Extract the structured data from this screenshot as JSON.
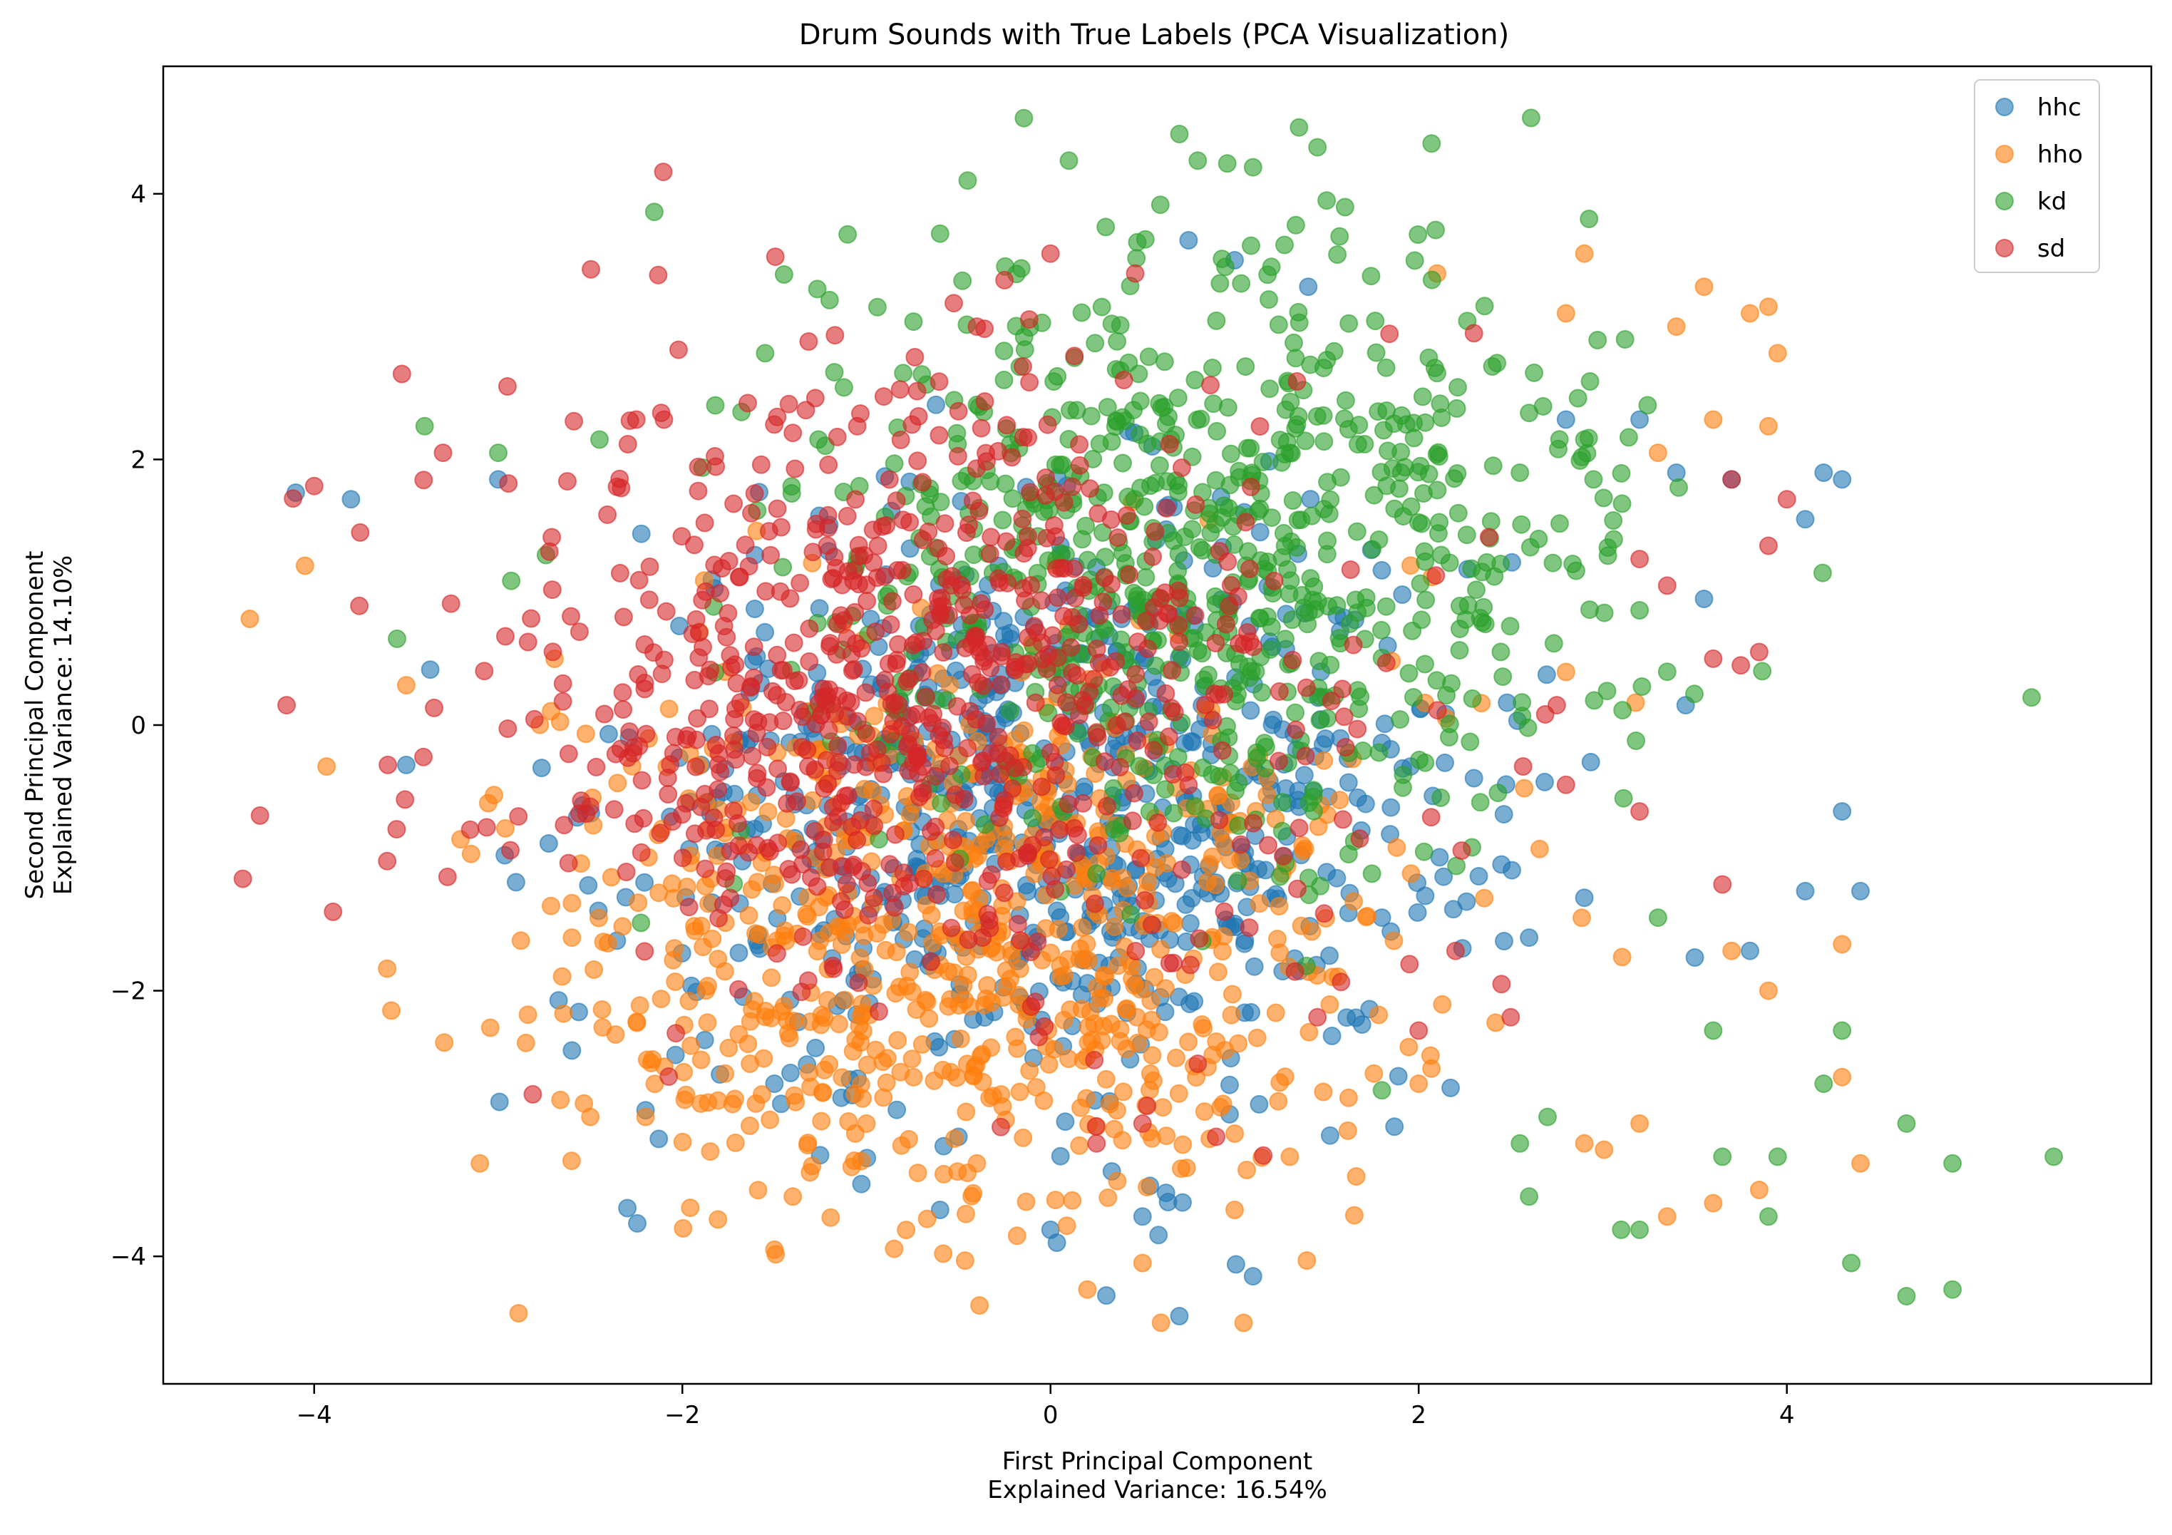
{
  "chart_data": {
    "type": "scatter",
    "title": "Drum Sounds with True Labels (PCA Visualization)",
    "xlabel": [
      "First Principal Component",
      "Explained Variance: 16.54%"
    ],
    "ylabel": [
      "Second Principal Component",
      "Explained Variance: 14.10%"
    ],
    "xlim": [
      -4.82,
      5.98
    ],
    "ylim": [
      -4.96,
      4.96
    ],
    "xticks": [
      -4,
      -2,
      0,
      2,
      4
    ],
    "yticks": [
      -4,
      -2,
      0,
      2,
      4
    ],
    "xtick_labels": [
      "−4",
      "−2",
      "0",
      "2",
      "4"
    ],
    "ytick_labels": [
      "−4",
      "−2",
      "0",
      "2",
      "4"
    ],
    "grid": false,
    "legend_position": "top-right",
    "point_alpha": 0.6,
    "series": [
      {
        "name": "hhc",
        "color": "#1f77b4",
        "center": [
          0.0,
          -0.6
        ],
        "count": 750,
        "sample_points": [
          [
            -4.1,
            1.75
          ],
          [
            -3.8,
            1.7
          ],
          [
            -3.5,
            -0.3
          ],
          [
            -3.0,
            1.85
          ],
          [
            -2.6,
            -2.45
          ],
          [
            -2.2,
            -2.9
          ],
          [
            -1.5,
            -2.7
          ],
          [
            -0.6,
            -3.65
          ],
          [
            0.0,
            -3.8
          ],
          [
            0.5,
            -3.7
          ],
          [
            0.7,
            -4.45
          ],
          [
            1.1,
            -4.15
          ],
          [
            0.75,
            3.65
          ],
          [
            1.0,
            3.5
          ],
          [
            1.4,
            3.3
          ],
          [
            2.8,
            2.3
          ],
          [
            3.2,
            2.3
          ],
          [
            3.4,
            1.9
          ],
          [
            3.55,
            0.95
          ],
          [
            3.7,
            1.85
          ],
          [
            4.1,
            1.55
          ],
          [
            4.2,
            1.9
          ],
          [
            4.3,
            1.85
          ],
          [
            4.3,
            -0.65
          ],
          [
            4.4,
            -1.25
          ],
          [
            4.1,
            -1.25
          ],
          [
            3.8,
            -1.7
          ],
          [
            3.5,
            -1.75
          ],
          [
            2.9,
            -1.3
          ],
          [
            2.6,
            -1.6
          ],
          [
            1.8,
            -1.45
          ],
          [
            2.3,
            -0.4
          ],
          [
            3.45,
            0.15
          ],
          [
            -0.5,
            -3.1
          ]
        ]
      },
      {
        "name": "hho",
        "color": "#ff7f0e",
        "center": [
          -0.4,
          -1.6
        ],
        "count": 750,
        "sample_points": [
          [
            -4.35,
            0.8
          ],
          [
            -4.05,
            1.2
          ],
          [
            -3.5,
            0.3
          ],
          [
            -3.1,
            -3.3
          ],
          [
            -2.6,
            -1.6
          ],
          [
            -2.5,
            -2.95
          ],
          [
            -2.2,
            -2.95
          ],
          [
            -1.9,
            -2.85
          ],
          [
            -1.5,
            -3.95
          ],
          [
            -1.4,
            -3.55
          ],
          [
            -1.0,
            -3.0
          ],
          [
            -0.4,
            -3.3
          ],
          [
            0.2,
            -4.25
          ],
          [
            0.6,
            -4.5
          ],
          [
            0.5,
            -4.05
          ],
          [
            1.0,
            -3.65
          ],
          [
            1.3,
            -3.25
          ],
          [
            2.0,
            -2.7
          ],
          [
            2.1,
            3.4
          ],
          [
            2.9,
            3.55
          ],
          [
            2.8,
            3.1
          ],
          [
            3.4,
            3.0
          ],
          [
            3.55,
            3.3
          ],
          [
            3.8,
            3.1
          ],
          [
            3.9,
            3.15
          ],
          [
            3.95,
            2.8
          ],
          [
            3.3,
            2.05
          ],
          [
            3.6,
            2.3
          ],
          [
            3.9,
            2.25
          ],
          [
            3.7,
            -1.7
          ],
          [
            3.9,
            -2.0
          ],
          [
            4.3,
            -1.65
          ],
          [
            4.3,
            -2.65
          ],
          [
            4.4,
            -3.3
          ],
          [
            3.85,
            -3.5
          ],
          [
            3.6,
            -3.6
          ],
          [
            3.35,
            -3.7
          ],
          [
            3.2,
            -3.0
          ],
          [
            2.9,
            -3.15
          ],
          [
            2.15,
            0.05
          ],
          [
            2.8,
            0.4
          ]
        ]
      },
      {
        "name": "kd",
        "color": "#2ca02c",
        "center": [
          0.8,
          1.2
        ],
        "count": 750,
        "sample_points": [
          [
            -3.4,
            2.25
          ],
          [
            -3.0,
            2.05
          ],
          [
            -2.45,
            2.15
          ],
          [
            -1.55,
            2.8
          ],
          [
            -1.2,
            3.2
          ],
          [
            -0.8,
            2.65
          ],
          [
            -0.6,
            3.7
          ],
          [
            -0.45,
            4.1
          ],
          [
            0.1,
            4.25
          ],
          [
            0.3,
            3.75
          ],
          [
            0.7,
            4.45
          ],
          [
            0.8,
            4.25
          ],
          [
            1.1,
            4.2
          ],
          [
            1.35,
            4.5
          ],
          [
            1.45,
            4.35
          ],
          [
            1.6,
            3.9
          ],
          [
            1.5,
            3.95
          ],
          [
            1.2,
            3.45
          ],
          [
            0.95,
            3.45
          ],
          [
            2.1,
            2.65
          ],
          [
            2.4,
            2.7
          ],
          [
            2.6,
            2.35
          ],
          [
            2.55,
            1.9
          ],
          [
            2.95,
            1.85
          ],
          [
            2.9,
            2.15
          ],
          [
            1.8,
            -2.75
          ],
          [
            3.3,
            -1.45
          ],
          [
            3.6,
            -2.3
          ],
          [
            3.65,
            -3.25
          ],
          [
            3.9,
            -3.7
          ],
          [
            3.95,
            -3.25
          ],
          [
            4.2,
            -2.7
          ],
          [
            4.3,
            -2.3
          ],
          [
            4.35,
            -4.05
          ],
          [
            4.65,
            -4.3
          ],
          [
            4.9,
            -4.25
          ],
          [
            4.9,
            -3.3
          ],
          [
            5.45,
            -3.25
          ],
          [
            4.65,
            -3.0
          ],
          [
            3.2,
            -3.8
          ],
          [
            3.1,
            -3.8
          ],
          [
            2.7,
            -2.95
          ],
          [
            2.55,
            -3.15
          ],
          [
            2.6,
            -3.55
          ],
          [
            -3.55,
            0.65
          ]
        ]
      },
      {
        "name": "sd",
        "color": "#d62728",
        "center": [
          -0.8,
          0.2
        ],
        "count": 750,
        "sample_points": [
          [
            -4.15,
            0.15
          ],
          [
            -4.0,
            1.8
          ],
          [
            -3.75,
            1.45
          ],
          [
            -3.6,
            -0.3
          ],
          [
            -3.3,
            2.05
          ],
          [
            -2.95,
            2.55
          ],
          [
            -2.25,
            2.3
          ],
          [
            -2.1,
            2.3
          ],
          [
            -1.4,
            2.2
          ],
          [
            -1.05,
            2.25
          ],
          [
            -0.4,
            3.0
          ],
          [
            0.0,
            3.55
          ],
          [
            -0.15,
            2.7
          ],
          [
            -0.25,
            3.35
          ],
          [
            0.8,
            -2.55
          ],
          [
            0.5,
            -3.0
          ],
          [
            0.25,
            -3.15
          ],
          [
            0.9,
            -3.1
          ],
          [
            1.95,
            -1.8
          ],
          [
            2.0,
            -2.3
          ],
          [
            1.45,
            -2.2
          ],
          [
            2.2,
            -1.7
          ],
          [
            2.45,
            -1.95
          ],
          [
            2.5,
            -2.2
          ],
          [
            2.3,
            2.95
          ],
          [
            3.2,
            1.25
          ],
          [
            3.35,
            1.05
          ],
          [
            3.6,
            0.5
          ],
          [
            3.75,
            0.45
          ],
          [
            3.7,
            1.85
          ],
          [
            3.85,
            0.55
          ],
          [
            3.9,
            1.35
          ],
          [
            4.0,
            1.7
          ],
          [
            3.65,
            -1.2
          ],
          [
            3.2,
            -0.65
          ],
          [
            2.75,
            0.15
          ],
          [
            2.8,
            -0.45
          ]
        ]
      }
    ]
  }
}
